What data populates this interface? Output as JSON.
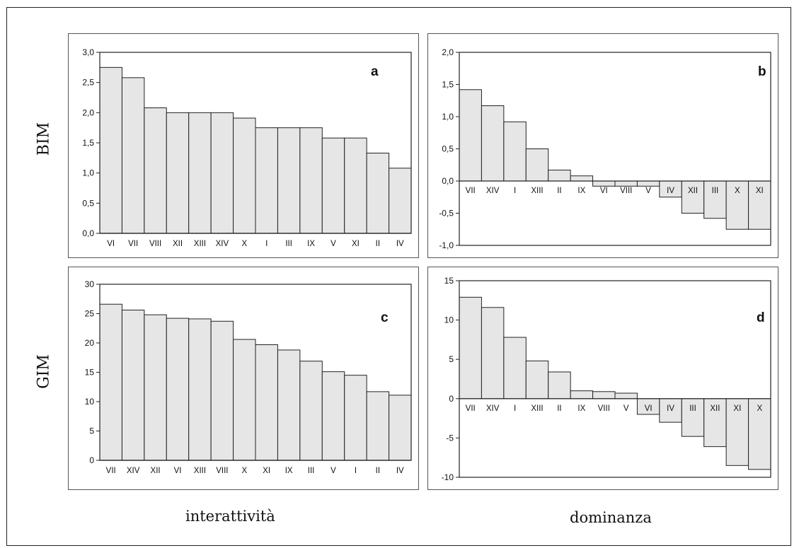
{
  "row_labels": [
    "BIM",
    "GIM"
  ],
  "column_labels": [
    "interattività",
    "dominanza"
  ],
  "colors": {
    "bar_fill": "#e6e6e6",
    "stroke": "#222222"
  },
  "chart_data": [
    {
      "type": "bar",
      "panel_label": "a",
      "categories": [
        "VI",
        "VII",
        "VIII",
        "XII",
        "XIII",
        "XIV",
        "X",
        "I",
        "III",
        "IX",
        "V",
        "XI",
        "II",
        "IV"
      ],
      "values": [
        2.75,
        2.58,
        2.08,
        2.0,
        2.0,
        2.0,
        1.91,
        1.75,
        1.75,
        1.75,
        1.58,
        1.58,
        1.33,
        1.08
      ],
      "ylim": [
        0,
        3
      ],
      "yticks": [
        "0,0",
        "0,5",
        "1,0",
        "1,5",
        "2,0",
        "2,5",
        "3,0"
      ],
      "ytick_values": [
        0,
        0.5,
        1.0,
        1.5,
        2.0,
        2.5,
        3.0
      ],
      "grid": false
    },
    {
      "type": "bar",
      "panel_label": "b",
      "categories": [
        "VII",
        "XIV",
        "I",
        "XIII",
        "II",
        "IX",
        "VI",
        "VIII",
        "V",
        "IV",
        "XII",
        "III",
        "X",
        "XI"
      ],
      "values": [
        1.42,
        1.17,
        0.92,
        0.5,
        0.17,
        0.08,
        -0.08,
        -0.08,
        -0.08,
        -0.25,
        -0.5,
        -0.58,
        -0.75,
        -0.75
      ],
      "ylim": [
        -1,
        2
      ],
      "yticks": [
        "-1,0",
        "-0,5",
        "0,0",
        "0,5",
        "1,0",
        "1,5",
        "2,0"
      ],
      "ytick_values": [
        -1,
        -0.5,
        0,
        0.5,
        1.0,
        1.5,
        2.0
      ],
      "grid": false
    },
    {
      "type": "bar",
      "panel_label": "c",
      "categories": [
        "VII",
        "XIV",
        "XII",
        "VI",
        "XIII",
        "VIII",
        "X",
        "XI",
        "IX",
        "III",
        "V",
        "I",
        "II",
        "IV"
      ],
      "values": [
        26.6,
        25.6,
        24.8,
        24.2,
        24.1,
        23.7,
        20.6,
        19.7,
        18.8,
        16.9,
        15.1,
        14.5,
        11.7,
        11.1
      ],
      "ylim": [
        0,
        30
      ],
      "yticks": [
        "0",
        "5",
        "10",
        "15",
        "20",
        "25",
        "30"
      ],
      "ytick_values": [
        0,
        5,
        10,
        15,
        20,
        25,
        30
      ],
      "grid": false
    },
    {
      "type": "bar",
      "panel_label": "d",
      "categories": [
        "VII",
        "XIV",
        "I",
        "XIII",
        "II",
        "IX",
        "VIII",
        "V",
        "VI",
        "IV",
        "III",
        "XII",
        "XI",
        "X"
      ],
      "values": [
        12.9,
        11.6,
        7.8,
        4.8,
        3.4,
        1.0,
        0.9,
        0.7,
        -2.0,
        -3.0,
        -4.8,
        -6.1,
        -8.5,
        -9.0
      ],
      "ylim": [
        -10,
        15
      ],
      "yticks": [
        "-10",
        "-5",
        "0",
        "5",
        "10",
        "15"
      ],
      "ytick_values": [
        -10,
        -5,
        0,
        5,
        10,
        15
      ],
      "grid": false
    }
  ]
}
